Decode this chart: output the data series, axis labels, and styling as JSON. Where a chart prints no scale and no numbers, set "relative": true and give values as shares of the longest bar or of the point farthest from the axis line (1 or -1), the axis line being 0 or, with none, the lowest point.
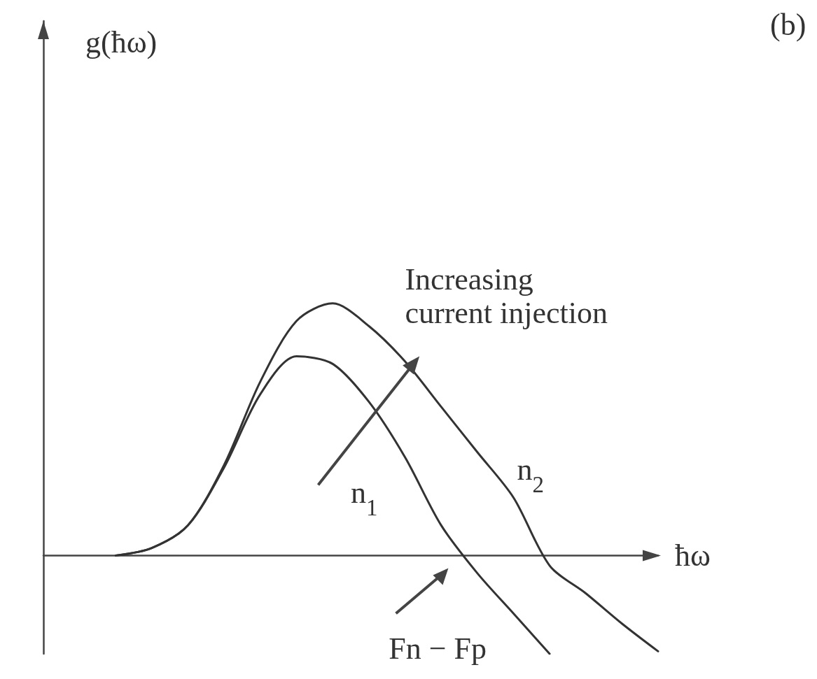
{
  "chart_data": {
    "type": "line",
    "relative": true,
    "title": "(b)",
    "xlabel": "ħω",
    "categories": [
      null,
      null,
      null,
      null,
      null,
      null,
      null,
      null,
      null,
      null,
      null,
      null,
      null,
      null,
      null,
      null,
      null,
      null
    ],
    "series": [
      {
        "name": "n$_{1}$",
        "color": "#333333",
        "values": [
          null,
          null,
          0,
          0.03,
          0.12,
          0.35,
          0.64,
          0.79,
          0.76,
          0.61,
          0.39,
          0.12,
          -0.07,
          -0.23,
          -0.39,
          null,
          null,
          null
        ]
      },
      {
        "name": "n$_{2}$",
        "color": "#333333",
        "values": [
          null,
          null,
          0,
          0.03,
          0.12,
          0.36,
          0.69,
          0.93,
          1,
          0.91,
          0.77,
          0.59,
          0.41,
          0.23,
          -0.04,
          -0.15,
          -0.27,
          -0.38
        ]
      }
    ],
    "annotations": [
      "g(ħω)",
      "Increasing\ncurrent injection",
      "Fn − Fp"
    ],
    "marker": "none",
    "line_style": "solid",
    "grid": false,
    "legend": false
  }
}
